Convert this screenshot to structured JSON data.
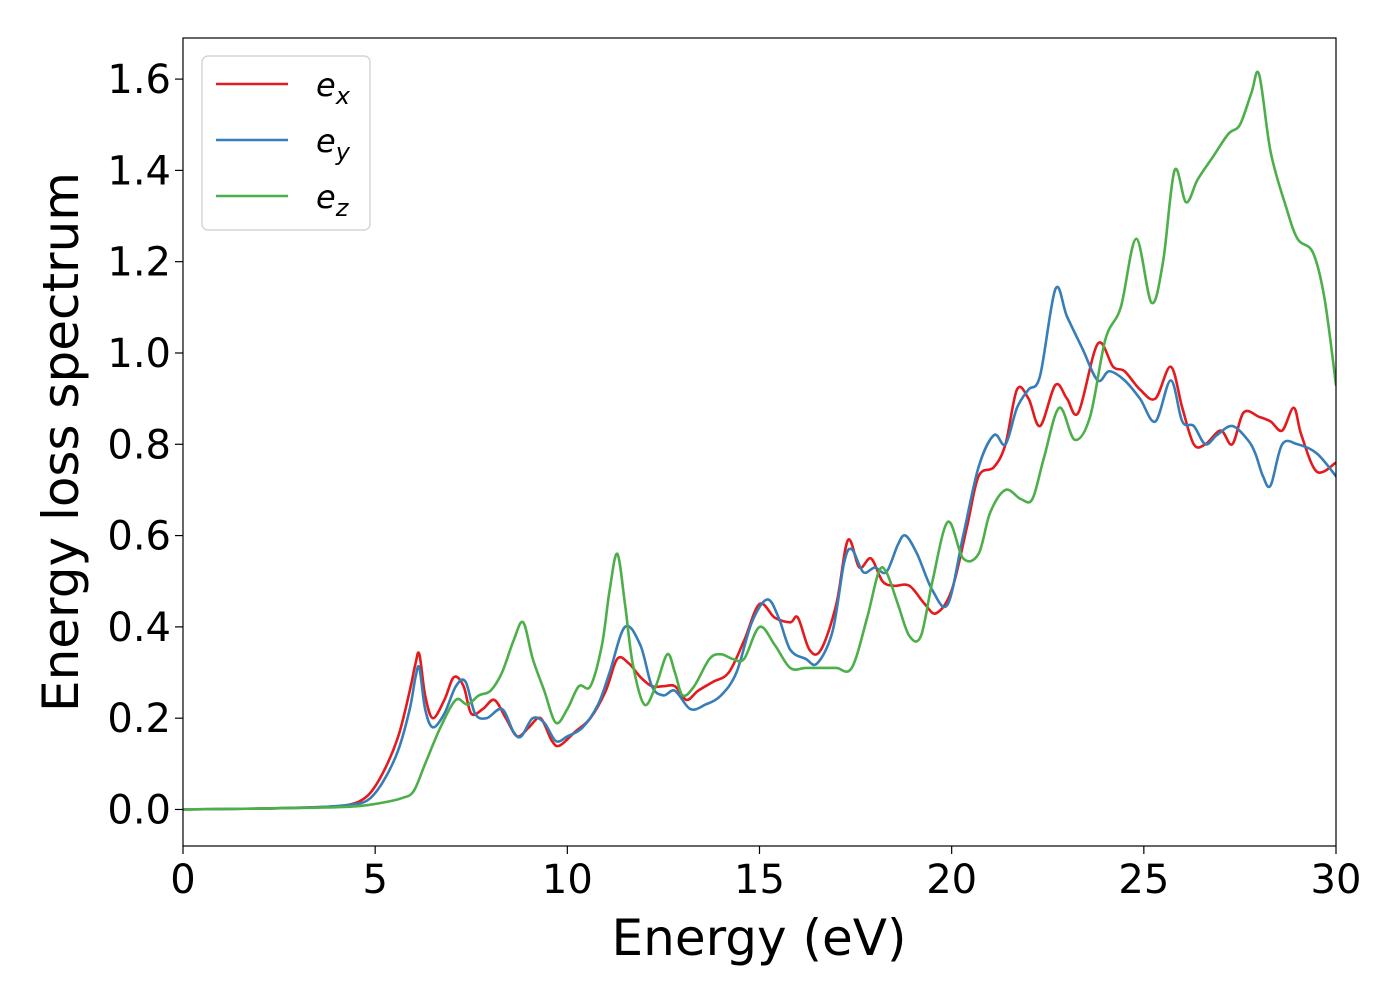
{
  "chart_data": {
    "type": "line",
    "xlabel": "Energy (eV)",
    "ylabel": "Energy loss spectrum",
    "xlim": [
      0,
      30
    ],
    "ylim": [
      -0.08,
      1.69
    ],
    "x_ticks": [
      "0",
      "5",
      "10",
      "15",
      "20",
      "25",
      "30"
    ],
    "y_ticks": [
      "0.0",
      "0.2",
      "0.4",
      "0.6",
      "0.8",
      "1.0",
      "1.2",
      "1.4",
      "1.6"
    ],
    "legend_position": "upper-left",
    "grid": false,
    "series": [
      {
        "name": "e_x",
        "legend_base": "e",
        "legend_sub": "x",
        "color": "#e41a1c",
        "x": [
          0,
          2,
          3.5,
          4.3,
          4.8,
          5.2,
          5.6,
          5.9,
          6.05,
          6.15,
          6.3,
          6.5,
          6.8,
          7.05,
          7.3,
          7.5,
          7.8,
          8.1,
          8.4,
          8.7,
          9.0,
          9.3,
          9.6,
          9.8,
          10.2,
          10.6,
          11.0,
          11.3,
          11.6,
          11.9,
          12.2,
          12.5,
          12.8,
          13.1,
          13.4,
          13.8,
          14.2,
          14.6,
          15.0,
          15.4,
          15.8,
          16.0,
          16.3,
          16.6,
          17.0,
          17.3,
          17.6,
          17.9,
          18.2,
          18.5,
          18.9,
          19.3,
          19.6,
          20.0,
          20.4,
          20.7,
          21.1,
          21.4,
          21.7,
          22.0,
          22.3,
          22.7,
          23.0,
          23.3,
          23.8,
          24.2,
          24.5,
          24.9,
          25.3,
          25.7,
          26.0,
          26.3,
          26.6,
          27.0,
          27.3,
          27.6,
          28.0,
          28.3,
          28.6,
          28.9,
          29.1,
          29.5,
          30.0
        ],
        "y": [
          0,
          0.002,
          0.005,
          0.01,
          0.03,
          0.08,
          0.16,
          0.26,
          0.32,
          0.34,
          0.25,
          0.2,
          0.24,
          0.29,
          0.27,
          0.21,
          0.22,
          0.24,
          0.2,
          0.16,
          0.18,
          0.2,
          0.15,
          0.14,
          0.17,
          0.2,
          0.26,
          0.33,
          0.32,
          0.29,
          0.27,
          0.27,
          0.27,
          0.24,
          0.26,
          0.28,
          0.3,
          0.37,
          0.45,
          0.42,
          0.41,
          0.42,
          0.35,
          0.35,
          0.45,
          0.59,
          0.53,
          0.55,
          0.5,
          0.49,
          0.49,
          0.45,
          0.43,
          0.48,
          0.62,
          0.73,
          0.75,
          0.8,
          0.92,
          0.9,
          0.84,
          0.93,
          0.9,
          0.87,
          1.02,
          0.97,
          0.96,
          0.92,
          0.9,
          0.97,
          0.88,
          0.8,
          0.8,
          0.83,
          0.8,
          0.87,
          0.86,
          0.85,
          0.83,
          0.88,
          0.82,
          0.74,
          0.76
        ]
      },
      {
        "name": "e_y",
        "legend_base": "e",
        "legend_sub": "y",
        "color": "#377eb8",
        "x": [
          0,
          2,
          3.5,
          4.3,
          4.8,
          5.2,
          5.6,
          5.9,
          6.05,
          6.15,
          6.3,
          6.5,
          6.8,
          7.1,
          7.35,
          7.6,
          7.9,
          8.3,
          8.6,
          8.8,
          9.1,
          9.4,
          9.7,
          10.0,
          10.4,
          10.8,
          11.1,
          11.5,
          11.9,
          12.2,
          12.5,
          12.8,
          13.2,
          13.6,
          14.0,
          14.4,
          14.8,
          15.2,
          15.5,
          15.8,
          16.2,
          16.5,
          16.9,
          17.2,
          17.4,
          17.7,
          18.0,
          18.3,
          18.6,
          18.8,
          19.1,
          19.5,
          19.9,
          20.3,
          20.7,
          21.1,
          21.4,
          21.7,
          22.0,
          22.3,
          22.7,
          23.0,
          23.4,
          23.8,
          24.1,
          24.5,
          24.9,
          25.3,
          25.7,
          26.0,
          26.3,
          26.6,
          26.9,
          27.3,
          27.7,
          27.9,
          28.1,
          28.3,
          28.6,
          29.0,
          29.5,
          30.0
        ],
        "y": [
          0,
          0.002,
          0.005,
          0.01,
          0.02,
          0.06,
          0.13,
          0.22,
          0.29,
          0.31,
          0.22,
          0.18,
          0.21,
          0.27,
          0.28,
          0.21,
          0.2,
          0.22,
          0.17,
          0.16,
          0.2,
          0.19,
          0.15,
          0.16,
          0.18,
          0.23,
          0.3,
          0.4,
          0.36,
          0.27,
          0.25,
          0.26,
          0.22,
          0.23,
          0.25,
          0.3,
          0.41,
          0.46,
          0.42,
          0.35,
          0.33,
          0.32,
          0.39,
          0.54,
          0.57,
          0.52,
          0.53,
          0.52,
          0.58,
          0.6,
          0.56,
          0.48,
          0.45,
          0.6,
          0.75,
          0.82,
          0.8,
          0.88,
          0.92,
          0.95,
          1.14,
          1.08,
          1.01,
          0.94,
          0.96,
          0.94,
          0.9,
          0.85,
          0.94,
          0.85,
          0.84,
          0.8,
          0.82,
          0.84,
          0.81,
          0.78,
          0.73,
          0.71,
          0.8,
          0.8,
          0.78,
          0.73
        ]
      },
      {
        "name": "e_z",
        "legend_base": "e",
        "legend_sub": "z",
        "color": "#4daf4a",
        "x": [
          0,
          2,
          3.5,
          4.5,
          5.2,
          5.7,
          6.0,
          6.3,
          6.7,
          7.1,
          7.4,
          7.7,
          8.0,
          8.3,
          8.6,
          8.85,
          9.1,
          9.4,
          9.7,
          10.0,
          10.3,
          10.6,
          10.9,
          11.1,
          11.3,
          11.5,
          11.7,
          12.0,
          12.3,
          12.6,
          12.8,
          13.0,
          13.3,
          13.7,
          14.0,
          14.3,
          14.6,
          15.0,
          15.4,
          15.8,
          16.2,
          16.6,
          17.0,
          17.4,
          17.8,
          18.1,
          18.3,
          18.6,
          18.9,
          19.2,
          19.5,
          19.9,
          20.3,
          20.7,
          21.0,
          21.4,
          21.8,
          22.1,
          22.4,
          22.8,
          23.2,
          23.6,
          24.0,
          24.4,
          24.8,
          25.2,
          25.5,
          25.8,
          26.1,
          26.4,
          26.8,
          27.2,
          27.5,
          27.8,
          28.0,
          28.3,
          28.7,
          29.0,
          29.4,
          29.7,
          30.0
        ],
        "y": [
          0,
          0.002,
          0.004,
          0.007,
          0.015,
          0.025,
          0.04,
          0.1,
          0.18,
          0.24,
          0.23,
          0.25,
          0.26,
          0.3,
          0.37,
          0.41,
          0.33,
          0.26,
          0.19,
          0.22,
          0.27,
          0.27,
          0.36,
          0.48,
          0.56,
          0.45,
          0.32,
          0.23,
          0.27,
          0.34,
          0.3,
          0.25,
          0.27,
          0.33,
          0.34,
          0.33,
          0.33,
          0.4,
          0.36,
          0.31,
          0.31,
          0.31,
          0.31,
          0.31,
          0.42,
          0.52,
          0.52,
          0.45,
          0.38,
          0.38,
          0.5,
          0.63,
          0.55,
          0.56,
          0.65,
          0.7,
          0.68,
          0.68,
          0.77,
          0.88,
          0.81,
          0.86,
          1.03,
          1.1,
          1.25,
          1.11,
          1.2,
          1.4,
          1.33,
          1.38,
          1.43,
          1.48,
          1.5,
          1.57,
          1.61,
          1.44,
          1.32,
          1.25,
          1.22,
          1.12,
          0.93
        ]
      }
    ]
  }
}
